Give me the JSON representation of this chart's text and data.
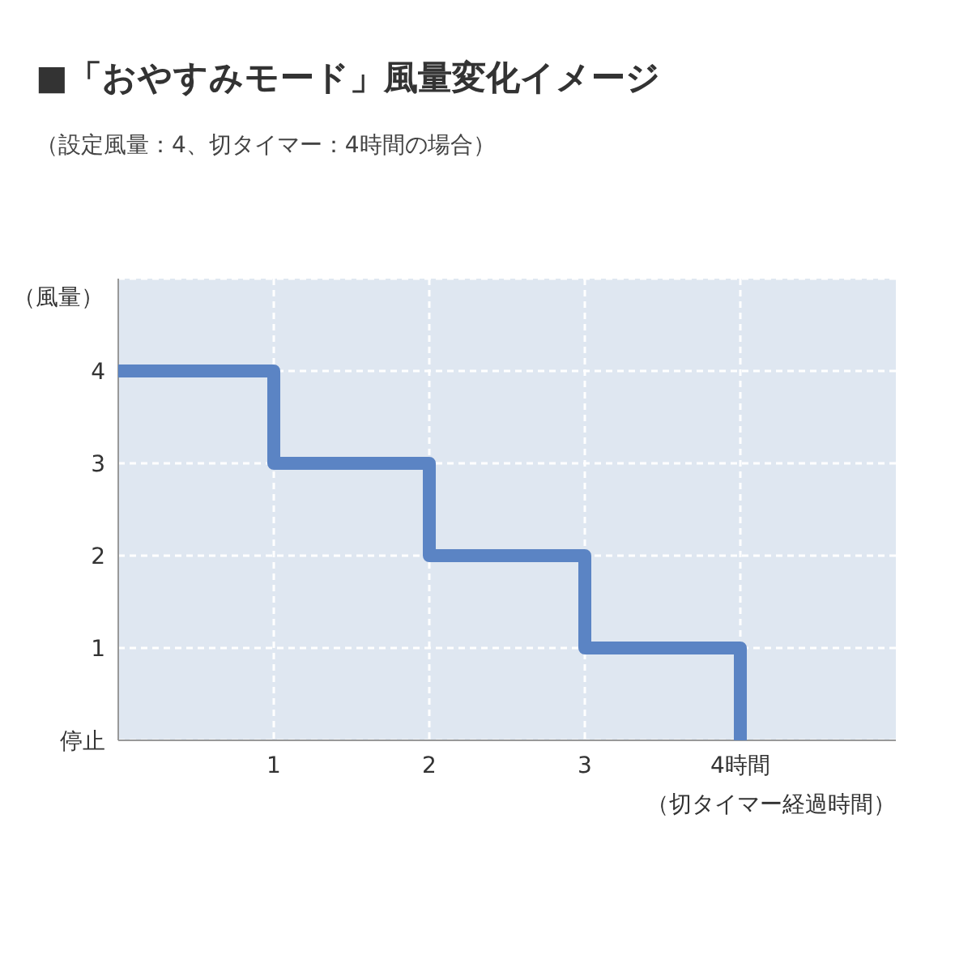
{
  "chart_data": {
    "type": "step",
    "title": "■「おやすみモード」風量変化イメージ",
    "subtitle": "（設定風量：4、切タイマー：4時間の場合）",
    "xlabel": "（切タイマー経過時間）",
    "ylabel": "（風量）",
    "x": [
      0,
      1,
      2,
      3,
      4
    ],
    "series": [
      {
        "color": "#5b84c4",
        "values": [
          4,
          3,
          2,
          1,
          0
        ]
      }
    ],
    "xlim": [
      0,
      5
    ],
    "ylim": [
      0,
      5
    ],
    "xticks": [
      1,
      2,
      3,
      {
        "value": 4,
        "label": "4時間"
      }
    ],
    "yticks": [
      {
        "value": 0,
        "label": "停止"
      },
      1,
      2,
      3,
      4,
      {
        "value": 5,
        "label": null
      }
    ],
    "grid": true,
    "line_style": "solid"
  }
}
